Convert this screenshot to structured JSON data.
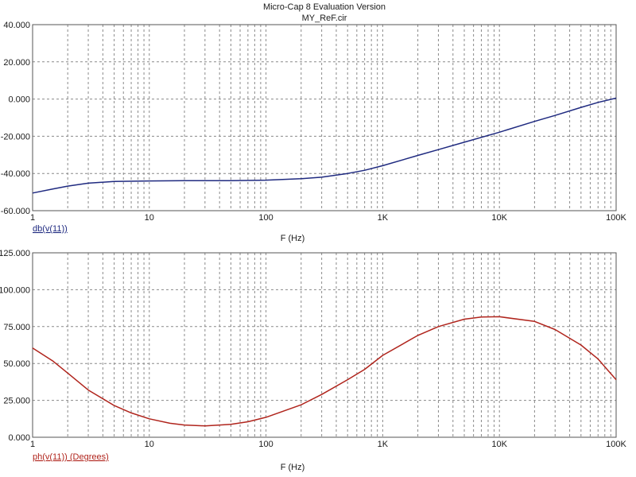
{
  "header": {
    "title": "Micro-Cap 8 Evaluation Version",
    "subtitle": "MY_ReF.cir"
  },
  "chart_data": [
    {
      "type": "line",
      "title": "",
      "xlabel": "F (Hz)",
      "ylabel": "",
      "x_scale": "log",
      "xlim": [
        1,
        100000
      ],
      "ylim": [
        -60,
        40
      ],
      "grid": true,
      "x_ticks": [
        {
          "value": 1,
          "label": "1"
        },
        {
          "value": 10,
          "label": "10"
        },
        {
          "value": 100,
          "label": "100"
        },
        {
          "value": 1000,
          "label": "1K"
        },
        {
          "value": 10000,
          "label": "10K"
        },
        {
          "value": 100000,
          "label": "100K"
        }
      ],
      "y_ticks": [
        {
          "value": 40,
          "label": "40.000"
        },
        {
          "value": 20,
          "label": "20.000"
        },
        {
          "value": 0,
          "label": "0.000"
        },
        {
          "value": -20,
          "label": "-20.000"
        },
        {
          "value": -40,
          "label": "-40.000"
        },
        {
          "value": -60,
          "label": "-60.000"
        }
      ],
      "series": [
        {
          "name": "db(v(11))",
          "color": "#1f2a80",
          "x": [
            1,
            1.5,
            2,
            3,
            5,
            10,
            20,
            50,
            100,
            200,
            300,
            500,
            700,
            1000,
            2000,
            3000,
            5000,
            10000,
            20000,
            30000,
            50000,
            70000,
            100000
          ],
          "y": [
            -50.5,
            -48.3,
            -46.8,
            -45.2,
            -44.3,
            -44.0,
            -43.9,
            -43.9,
            -43.6,
            -42.8,
            -42.0,
            -40.0,
            -38.3,
            -35.8,
            -30.3,
            -27.2,
            -23.2,
            -17.8,
            -12.0,
            -8.8,
            -4.5,
            -1.8,
            0.5
          ]
        }
      ]
    },
    {
      "type": "line",
      "title": "",
      "xlabel": "F (Hz)",
      "ylabel": "",
      "x_scale": "log",
      "xlim": [
        1,
        100000
      ],
      "ylim": [
        0,
        125
      ],
      "grid": true,
      "x_ticks": [
        {
          "value": 1,
          "label": "1"
        },
        {
          "value": 10,
          "label": "10"
        },
        {
          "value": 100,
          "label": "100"
        },
        {
          "value": 1000,
          "label": "1K"
        },
        {
          "value": 10000,
          "label": "10K"
        },
        {
          "value": 100000,
          "label": "100K"
        }
      ],
      "y_ticks": [
        {
          "value": 125,
          "label": "125.000"
        },
        {
          "value": 100,
          "label": "100.000"
        },
        {
          "value": 75,
          "label": "75.000"
        },
        {
          "value": 50,
          "label": "50.000"
        },
        {
          "value": 25,
          "label": "25.000"
        },
        {
          "value": 0,
          "label": "0.000"
        }
      ],
      "series": [
        {
          "name": "ph(v(11)) (Degrees)",
          "color": "#b0241c",
          "x": [
            1,
            1.5,
            2,
            3,
            5,
            7,
            10,
            15,
            20,
            30,
            50,
            70,
            100,
            200,
            300,
            500,
            700,
            1000,
            2000,
            3000,
            5000,
            7000,
            10000,
            20000,
            30000,
            50000,
            70000,
            100000
          ],
          "y": [
            60.5,
            51.5,
            43.5,
            32.0,
            21.5,
            16.5,
            12.5,
            9.5,
            8.3,
            7.7,
            8.8,
            10.5,
            13.5,
            22.0,
            29.0,
            39.0,
            46.0,
            55.5,
            69.0,
            75.0,
            80.0,
            81.5,
            81.7,
            78.5,
            73.0,
            62.5,
            53.0,
            39.0
          ]
        }
      ]
    }
  ]
}
